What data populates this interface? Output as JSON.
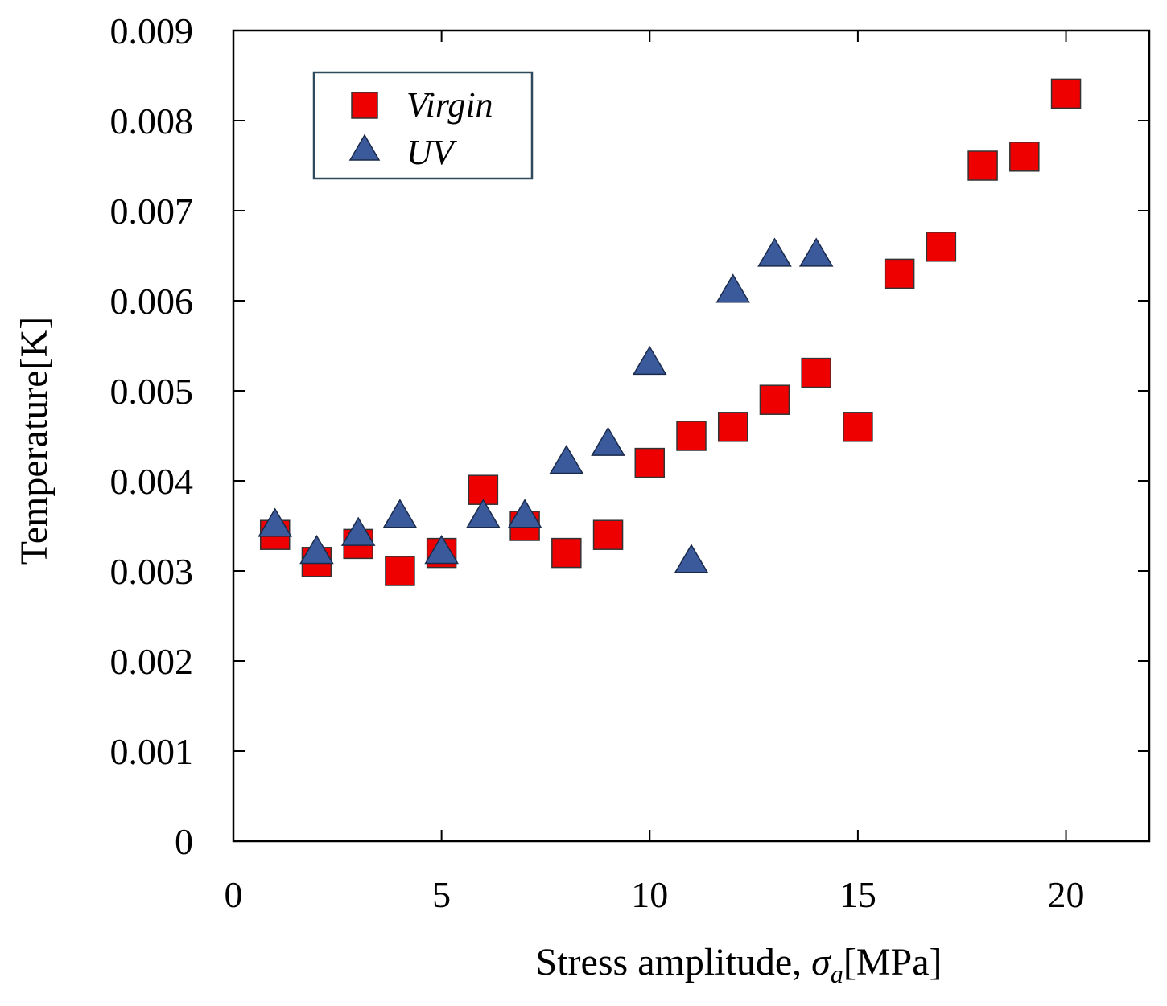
{
  "chart_data": {
    "type": "scatter",
    "title": "",
    "xlabel_main": "Stress amplitude, ",
    "xlabel_symbol": "σ",
    "xlabel_sub": "a",
    "xlabel_unit": "[MPa]",
    "ylabel": "Temperature[K]",
    "xlim": [
      0,
      22
    ],
    "ylim": [
      0,
      0.009
    ],
    "xticks": [
      0,
      5,
      10,
      15,
      20
    ],
    "xtick_labels": [
      "0",
      "5",
      "10",
      "15",
      "20"
    ],
    "yticks": [
      0,
      0.001,
      0.002,
      0.003,
      0.004,
      0.005,
      0.006,
      0.007,
      0.008,
      0.009
    ],
    "ytick_labels": [
      "0",
      "0.001",
      "0.002",
      "0.003",
      "0.004",
      "0.005",
      "0.006",
      "0.007",
      "0.008",
      "0.009"
    ],
    "legend_position": "top-left",
    "grid": false,
    "series": [
      {
        "name": "Virgin",
        "marker": "square",
        "color": "#ee0000",
        "x": [
          1,
          2,
          3,
          4,
          5,
          6,
          7,
          8,
          9,
          10,
          11,
          12,
          13,
          14,
          15,
          16,
          17,
          18,
          19,
          20
        ],
        "y": [
          0.0034,
          0.0031,
          0.0033,
          0.003,
          0.0032,
          0.0039,
          0.0035,
          0.0032,
          0.0034,
          0.0042,
          0.0045,
          0.0046,
          0.0049,
          0.0052,
          0.0046,
          0.0063,
          0.0066,
          0.0075,
          0.0076,
          0.0083
        ]
      },
      {
        "name": "UV",
        "marker": "triangle",
        "color": "#3a5a9c",
        "x": [
          1,
          2,
          3,
          4,
          5,
          6,
          7,
          8,
          9,
          10,
          11,
          12,
          13,
          14
        ],
        "y": [
          0.0035,
          0.0032,
          0.0034,
          0.0036,
          0.0032,
          0.0036,
          0.0036,
          0.0042,
          0.0044,
          0.0053,
          0.0031,
          0.0061,
          0.0065,
          0.0065
        ]
      }
    ]
  }
}
